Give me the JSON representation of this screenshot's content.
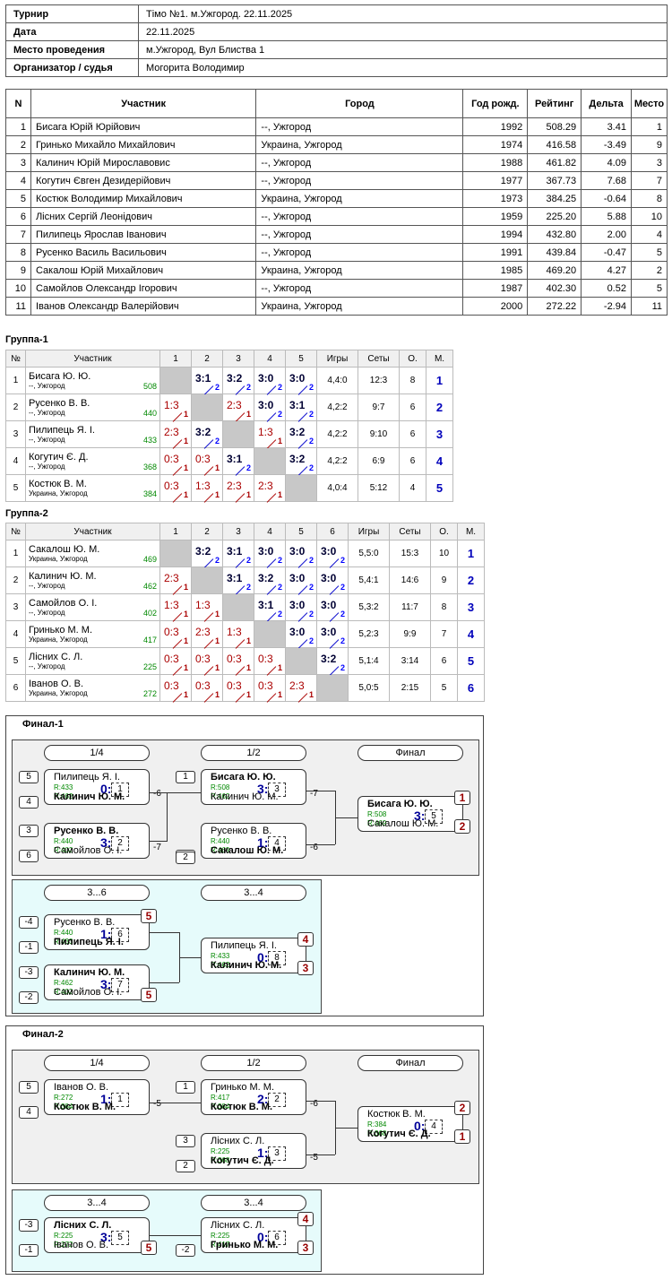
{
  "info": [
    {
      "k": "Турнир",
      "v": "Тімо №1. м.Ужгород. 22.11.2025"
    },
    {
      "k": "Дата",
      "v": "22.11.2025"
    },
    {
      "k": "Место проведения",
      "v": "м.Ужгород, Вул Блиства 1"
    },
    {
      "k": "Организатор / судья",
      "v": "Могорита Володимир"
    }
  ],
  "participants": {
    "headers": [
      "N",
      "Участник",
      "Город",
      "Год рожд.",
      "Рейтинг",
      "Дельта",
      "Место"
    ],
    "rows": [
      [
        "1",
        "Бисага Юрій Юрійович",
        "--, Ужгород",
        "1992",
        "508.29",
        "3.41",
        "1"
      ],
      [
        "2",
        "Гринько Михайло Михайлович",
        "Украина, Ужгород",
        "1974",
        "416.58",
        "-3.49",
        "9"
      ],
      [
        "3",
        "Калинич Юрій Мирославовис",
        "--, Ужгород",
        "1988",
        "461.82",
        "4.09",
        "3"
      ],
      [
        "4",
        "Когутич Євген Дезидерійович",
        "--, Ужгород",
        "1977",
        "367.73",
        "7.68",
        "7"
      ],
      [
        "5",
        "Костюк Володимир Михайлович",
        "Украина, Ужгород",
        "1973",
        "384.25",
        "-0.64",
        "8"
      ],
      [
        "6",
        "Лісних Сергій Леонідович",
        "--, Ужгород",
        "1959",
        "225.20",
        "5.88",
        "10"
      ],
      [
        "7",
        "Пилипець Ярослав Іванович",
        "--, Ужгород",
        "1994",
        "432.80",
        "2.00",
        "4"
      ],
      [
        "8",
        "Русенко Василь Васильович",
        "--, Ужгород",
        "1991",
        "439.84",
        "-0.47",
        "5"
      ],
      [
        "9",
        "Сакалош Юрій Михайлович",
        "Украина, Ужгород",
        "1985",
        "469.20",
        "4.27",
        "2"
      ],
      [
        "10",
        "Самойлов Олександр Ігорович",
        "--, Ужгород",
        "1987",
        "402.30",
        "0.52",
        "5"
      ],
      [
        "11",
        "Іванов Олександр Валерійович",
        "Украина, Ужгород",
        "2000",
        "272.22",
        "-2.94",
        "11"
      ]
    ]
  },
  "group1": {
    "title": "Группа-1",
    "headers": [
      "№",
      "Участник",
      "1",
      "2",
      "3",
      "4",
      "5",
      "Игры",
      "Сеты",
      "О.",
      "М."
    ],
    "rows": [
      {
        "n": "1",
        "name": "Бисага Ю. Ю.",
        "city": "--, Ужгород",
        "rating": "508",
        "cells": [
          null,
          [
            "3:1",
            "2",
            "w"
          ],
          [
            "3:2",
            "2",
            "w"
          ],
          [
            "3:0",
            "2",
            "w"
          ],
          [
            "3:0",
            "2",
            "w"
          ]
        ],
        "games": "4,4:0",
        "sets": "12:3",
        "pts": "8",
        "place": "1"
      },
      {
        "n": "2",
        "name": "Русенко В. В.",
        "city": "--, Ужгород",
        "rating": "440",
        "cells": [
          [
            "1:3",
            "1",
            "l"
          ],
          null,
          [
            "2:3",
            "1",
            "l"
          ],
          [
            "3:0",
            "2",
            "w"
          ],
          [
            "3:1",
            "2",
            "w"
          ]
        ],
        "games": "4,2:2",
        "sets": "9:7",
        "pts": "6",
        "place": "2"
      },
      {
        "n": "3",
        "name": "Пилипець Я. І.",
        "city": "--, Ужгород",
        "rating": "433",
        "cells": [
          [
            "2:3",
            "1",
            "l"
          ],
          [
            "3:2",
            "2",
            "w"
          ],
          null,
          [
            "1:3",
            "1",
            "l"
          ],
          [
            "3:2",
            "2",
            "w"
          ]
        ],
        "games": "4,2:2",
        "sets": "9:10",
        "pts": "6",
        "place": "3"
      },
      {
        "n": "4",
        "name": "Когутич Є. Д.",
        "city": "--, Ужгород",
        "rating": "368",
        "cells": [
          [
            "0:3",
            "1",
            "l"
          ],
          [
            "0:3",
            "1",
            "l"
          ],
          [
            "3:1",
            "2",
            "w"
          ],
          null,
          [
            "3:2",
            "2",
            "w"
          ]
        ],
        "games": "4,2:2",
        "sets": "6:9",
        "pts": "6",
        "place": "4"
      },
      {
        "n": "5",
        "name": "Костюк В. М.",
        "city": "Украина, Ужгород",
        "rating": "384",
        "cells": [
          [
            "0:3",
            "1",
            "l"
          ],
          [
            "1:3",
            "1",
            "l"
          ],
          [
            "2:3",
            "1",
            "l"
          ],
          [
            "2:3",
            "1",
            "l"
          ],
          null
        ],
        "games": "4,0:4",
        "sets": "5:12",
        "pts": "4",
        "place": "5"
      }
    ]
  },
  "group2": {
    "title": "Группа-2",
    "headers": [
      "№",
      "Участник",
      "1",
      "2",
      "3",
      "4",
      "5",
      "6",
      "Игры",
      "Сеты",
      "О.",
      "М."
    ],
    "rows": [
      {
        "n": "1",
        "name": "Сакалош Ю. М.",
        "city": "Украина, Ужгород",
        "rating": "469",
        "cells": [
          null,
          [
            "3:2",
            "2",
            "w"
          ],
          [
            "3:1",
            "2",
            "w"
          ],
          [
            "3:0",
            "2",
            "w"
          ],
          [
            "3:0",
            "2",
            "w"
          ],
          [
            "3:0",
            "2",
            "w"
          ]
        ],
        "games": "5,5:0",
        "sets": "15:3",
        "pts": "10",
        "place": "1"
      },
      {
        "n": "2",
        "name": "Калинич Ю. М.",
        "city": "--, Ужгород",
        "rating": "462",
        "cells": [
          [
            "2:3",
            "1",
            "l"
          ],
          null,
          [
            "3:1",
            "2",
            "w"
          ],
          [
            "3:2",
            "2",
            "w"
          ],
          [
            "3:0",
            "2",
            "w"
          ],
          [
            "3:0",
            "2",
            "w"
          ]
        ],
        "games": "5,4:1",
        "sets": "14:6",
        "pts": "9",
        "place": "2"
      },
      {
        "n": "3",
        "name": "Самойлов О. І.",
        "city": "--, Ужгород",
        "rating": "402",
        "cells": [
          [
            "1:3",
            "1",
            "l"
          ],
          [
            "1:3",
            "1",
            "l"
          ],
          null,
          [
            "3:1",
            "2",
            "w"
          ],
          [
            "3:0",
            "2",
            "w"
          ],
          [
            "3:0",
            "2",
            "w"
          ]
        ],
        "games": "5,3:2",
        "sets": "11:7",
        "pts": "8",
        "place": "3"
      },
      {
        "n": "4",
        "name": "Гринько М. М.",
        "city": "Украина, Ужгород",
        "rating": "417",
        "cells": [
          [
            "0:3",
            "1",
            "l"
          ],
          [
            "2:3",
            "1",
            "l"
          ],
          [
            "1:3",
            "1",
            "l"
          ],
          null,
          [
            "3:0",
            "2",
            "w"
          ],
          [
            "3:0",
            "2",
            "w"
          ]
        ],
        "games": "5,2:3",
        "sets": "9:9",
        "pts": "7",
        "place": "4"
      },
      {
        "n": "5",
        "name": "Лісних С. Л.",
        "city": "--, Ужгород",
        "rating": "225",
        "cells": [
          [
            "0:3",
            "1",
            "l"
          ],
          [
            "0:3",
            "1",
            "l"
          ],
          [
            "0:3",
            "1",
            "l"
          ],
          [
            "0:3",
            "1",
            "l"
          ],
          null,
          [
            "3:2",
            "2",
            "w"
          ]
        ],
        "games": "5,1:4",
        "sets": "3:14",
        "pts": "6",
        "place": "5"
      },
      {
        "n": "6",
        "name": "Іванов О. В.",
        "city": "Украина, Ужгород",
        "rating": "272",
        "cells": [
          [
            "0:3",
            "1",
            "l"
          ],
          [
            "0:3",
            "1",
            "l"
          ],
          [
            "0:3",
            "1",
            "l"
          ],
          [
            "0:3",
            "1",
            "l"
          ],
          [
            "2:3",
            "1",
            "l"
          ],
          null
        ],
        "games": "5,0:5",
        "sets": "2:15",
        "pts": "5",
        "place": "6"
      }
    ]
  },
  "final1": {
    "title": "Финал-1",
    "rounds": [
      "1/4",
      "1/2",
      "Финал"
    ],
    "cons_rounds": [
      "3...6",
      "3...4"
    ],
    "matches": [
      {
        "p1": "Пилипець Я. І.",
        "r1": "R:433",
        "p2": "Калинич Ю. М.",
        "r2": "R:462",
        "score": "0:3",
        "num": "1",
        "bold": 2,
        "s1": "5",
        "s2": "4",
        "note": "-6"
      },
      {
        "p1": "Русенко В. В.",
        "r1": "R:440",
        "p2": "Самойлов О. І.",
        "r2": "R:402",
        "score": "3:0",
        "num": "2",
        "bold": 1,
        "s1": "3",
        "s2": "6",
        "note": "-7"
      },
      {
        "p1": "Бисага Ю. Ю.",
        "r1": "R:508",
        "p2": "Калинич Ю. М.",
        "r2": "R:462",
        "score": "3:0",
        "num": "3",
        "bold": 1,
        "s1": "1",
        "note": "-7"
      },
      {
        "p1": "Русенко В. В.",
        "r1": "R:440",
        "p2": "Сакалош Ю. М.",
        "r2": "R:469",
        "score": "1:3",
        "num": "4",
        "bold": 2,
        "s2": "2",
        "note": "-6"
      },
      {
        "p1": "Бисага Ю. Ю.",
        "r1": "R:508",
        "p2": "Сакалош Ю. М.",
        "r2": "R:469",
        "score": "3:1",
        "num": "5",
        "bold": 1,
        "pl1": "1",
        "pl2": "2"
      },
      {
        "p1": "Русенко В. В.",
        "r1": "R:440",
        "p2": "Пилипець Я. І.",
        "r2": "R:433",
        "score": "1:3",
        "num": "6",
        "bold": 2,
        "s1": "-4",
        "s2": "-1",
        "pl1": "5"
      },
      {
        "p1": "Калинич Ю. М.",
        "r1": "R:462",
        "p2": "Самойлов О. І.",
        "r2": "R:402",
        "score": "3:0",
        "num": "7",
        "bold": 1,
        "s1": "-3",
        "s2": "-2",
        "pl2": "5"
      },
      {
        "p1": "Пилипець Я. І.",
        "r1": "R:433",
        "p2": "Калинич Ю. М.",
        "r2": "R:462",
        "score": "0:3",
        "num": "8",
        "bold": 2,
        "pl1": "4",
        "pl2": "3"
      }
    ]
  },
  "final2": {
    "title": "Финал-2",
    "rounds": [
      "1/4",
      "1/2",
      "Финал"
    ],
    "cons_rounds": [
      "3...4",
      "3...4"
    ],
    "matches": [
      {
        "p1": "Іванов О. В.",
        "r1": "R:272",
        "p2": "Костюк В. М.",
        "r2": "R:384",
        "score": "1:3",
        "num": "1",
        "bold": 2,
        "s1": "5",
        "s2": "4",
        "note": "-5"
      },
      {
        "p1": "Гринько М. М.",
        "r1": "R:417",
        "p2": "Костюк В. М.",
        "r2": "R:384",
        "score": "2:3",
        "num": "2",
        "bold": 2,
        "s1": "1",
        "note": "-6"
      },
      {
        "p1": "Лісних С. Л.",
        "r1": "R:225",
        "p2": "Когутич Є. Д.",
        "r2": "R:368",
        "score": "1:3",
        "num": "3",
        "bold": 2,
        "s1": "3",
        "s2": "2",
        "note": "-5"
      },
      {
        "p1": "Костюк В. М.",
        "r1": "R:384",
        "p2": "Когутич Є. Д.",
        "r2": "R:368",
        "score": "0:3",
        "num": "4",
        "bold": 2,
        "pl1": "2",
        "pl2": "1"
      },
      {
        "p1": "Лісних С. Л.",
        "r1": "R:225",
        "p2": "Іванов О. В.",
        "r2": "R:272",
        "score": "3:2",
        "num": "5",
        "bold": 1,
        "s1": "-3",
        "s2": "-1",
        "pl2": "5"
      },
      {
        "p1": "Лісних С. Л.",
        "r1": "R:225",
        "p2": "Гринько М. М.",
        "r2": "R:417",
        "score": "0:3",
        "num": "6",
        "bold": 2,
        "s2": "-2",
        "pl1": "4",
        "pl2": "3"
      }
    ]
  },
  "colors": {
    "win": "#0000cc",
    "lose": "#aa0000",
    "rating": "#008800",
    "cons_bg": "#e6fbfb",
    "main_bg": "#f0f0f0",
    "diag": "#c8c8c8"
  }
}
